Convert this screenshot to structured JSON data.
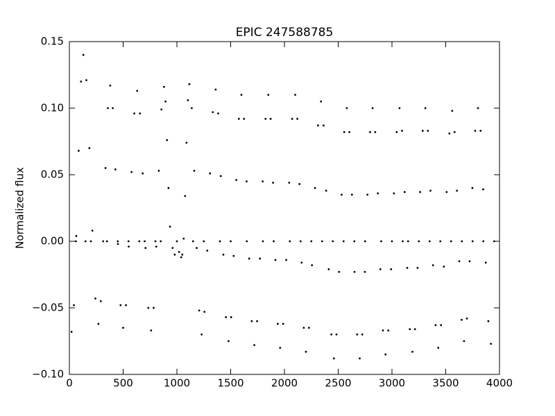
{
  "chart_data": {
    "type": "scatter",
    "title": "EPIC 247588785",
    "y_label": "Normalized flux",
    "color": "#000000",
    "x": [
      20,
      42,
      64,
      86,
      108,
      130,
      158,
      186,
      214,
      242,
      270,
      292,
      314,
      336,
      358,
      380,
      404,
      428,
      452,
      476,
      500,
      526,
      552,
      578,
      604,
      630,
      656,
      682,
      708,
      734,
      760,
      784,
      808,
      832,
      856,
      880,
      894,
      908,
      922,
      936,
      960,
      980,
      1000,
      1020,
      1040,
      1050,
      1063,
      1076,
      1089,
      1102,
      1115,
      1138,
      1161,
      1184,
      1207,
      1230,
      1256,
      1282,
      1308,
      1334,
      1360,
      1384,
      1408,
      1432,
      1456,
      1480,
      1504,
      1528,
      1552,
      1576,
      1600,
      1624,
      1648,
      1672,
      1696,
      1720,
      1746,
      1772,
      1798,
      1824,
      1850,
      1872,
      1894,
      1916,
      1938,
      1960,
      1988,
      2016,
      2044,
      2072,
      2100,
      2120,
      2140,
      2160,
      2180,
      2200,
      2228,
      2256,
      2284,
      2312,
      2340,
      2364,
      2388,
      2412,
      2436,
      2460,
      2484,
      2508,
      2532,
      2556,
      2580,
      2604,
      2628,
      2652,
      2676,
      2700,
      2724,
      2748,
      2772,
      2796,
      2820,
      2844,
      2868,
      2892,
      2916,
      2940,
      2966,
      2992,
      3018,
      3044,
      3070,
      3094,
      3118,
      3142,
      3166,
      3190,
      3214,
      3238,
      3262,
      3286,
      3310,
      3334,
      3358,
      3382,
      3406,
      3430,
      3456,
      3482,
      3508,
      3534,
      3560,
      3582,
      3604,
      3626,
      3648,
      3670,
      3696,
      3722,
      3748,
      3774,
      3800,
      3824,
      3848,
      3872,
      3896,
      3920,
      60,
      150,
      200,
      350,
      450,
      550,
      650,
      700,
      800,
      850,
      1150,
      1250,
      1400,
      1500,
      1650,
      1800,
      1900,
      2050,
      2150,
      2250,
      2350,
      2450,
      2550,
      2650,
      2750,
      2900,
      3000,
      3100,
      3150,
      3250,
      3350,
      3450,
      3550,
      3650,
      3750,
      3850,
      3950
    ],
    "values": [
      -0.068,
      -0.048,
      0.004,
      0.068,
      0.12,
      0.14,
      0.121,
      0.07,
      0.008,
      -0.043,
      -0.062,
      -0.045,
      0.0,
      0.055,
      0.1,
      0.117,
      0.1,
      0.054,
      -0.002,
      -0.048,
      -0.065,
      -0.048,
      -0.004,
      0.052,
      0.096,
      0.113,
      0.096,
      0.051,
      -0.005,
      -0.05,
      -0.067,
      -0.05,
      -0.004,
      0.053,
      0.099,
      0.116,
      0.105,
      0.076,
      0.04,
      0.011,
      -0.005,
      -0.01,
      0.0,
      -0.008,
      -0.012,
      -0.01,
      0.002,
      0.034,
      0.074,
      0.106,
      0.118,
      0.1,
      0.053,
      -0.005,
      -0.052,
      -0.07,
      -0.053,
      -0.007,
      0.051,
      0.097,
      0.114,
      0.096,
      0.049,
      -0.01,
      -0.057,
      -0.075,
      -0.057,
      -0.011,
      0.046,
      0.092,
      0.11,
      0.092,
      0.045,
      -0.013,
      -0.06,
      -0.078,
      -0.06,
      -0.013,
      0.045,
      0.092,
      0.11,
      0.092,
      0.044,
      -0.014,
      -0.062,
      -0.08,
      -0.062,
      -0.014,
      0.044,
      0.092,
      0.11,
      0.092,
      0.043,
      -0.016,
      -0.065,
      -0.083,
      -0.065,
      -0.018,
      0.04,
      0.087,
      0.105,
      0.087,
      0.038,
      -0.021,
      -0.07,
      -0.088,
      -0.07,
      -0.023,
      0.035,
      0.082,
      0.1,
      0.082,
      0.035,
      -0.023,
      -0.07,
      -0.088,
      -0.07,
      -0.023,
      0.035,
      0.082,
      0.1,
      0.082,
      0.036,
      -0.021,
      -0.067,
      -0.085,
      -0.067,
      -0.021,
      0.036,
      0.082,
      0.1,
      0.083,
      0.037,
      -0.02,
      -0.066,
      -0.083,
      -0.066,
      -0.02,
      0.037,
      0.083,
      0.1,
      0.083,
      0.038,
      -0.018,
      -0.063,
      -0.08,
      -0.063,
      -0.019,
      0.037,
      0.081,
      0.098,
      0.082,
      0.038,
      -0.015,
      -0.059,
      -0.075,
      -0.058,
      -0.015,
      0.04,
      0.083,
      0.1,
      0.083,
      0.039,
      -0.016,
      -0.06,
      -0.077,
      0,
      0,
      0,
      0,
      0,
      0,
      0,
      0,
      0,
      0,
      0,
      0,
      0,
      0,
      0,
      0,
      0,
      0,
      0,
      0,
      0,
      0,
      0,
      0,
      0,
      0,
      0,
      0,
      0,
      0,
      0,
      0,
      0,
      0,
      0,
      0,
      0
    ],
    "xlim": [
      0,
      4000
    ],
    "xticks": [
      0,
      500,
      1000,
      1500,
      2000,
      2500,
      3000,
      3500,
      4000
    ],
    "ylim": [
      -0.1,
      0.15
    ],
    "yticks": [
      {
        "value": -0.1,
        "label": "−0.10"
      },
      {
        "value": -0.05,
        "label": "−0.05"
      },
      {
        "value": 0,
        "label": "0.00"
      },
      {
        "value": 0.05,
        "label": "0.05"
      },
      {
        "value": 0.1,
        "label": "0.10"
      },
      0.15
    ]
  }
}
